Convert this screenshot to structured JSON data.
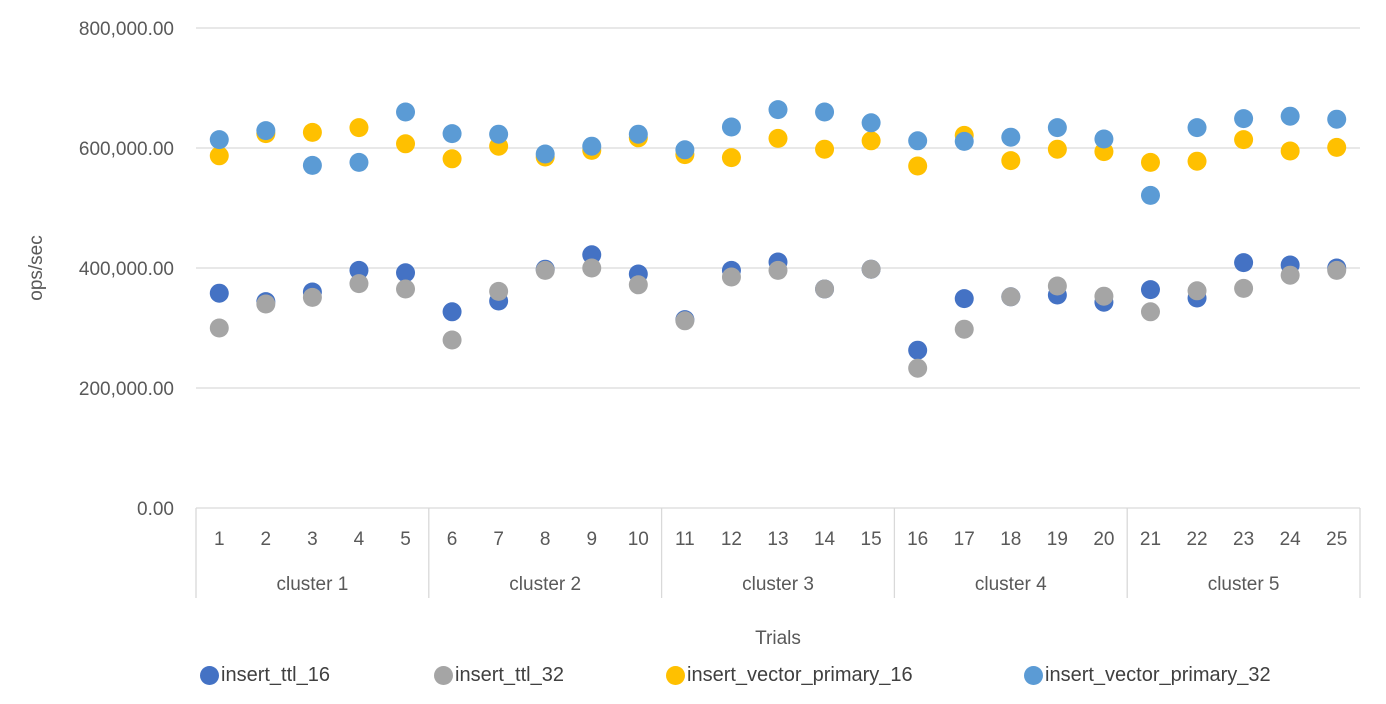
{
  "chart_data": {
    "type": "scatter",
    "xlabel": "Trials",
    "ylabel": "ops/sec",
    "ylim": [
      0,
      800000
    ],
    "yticks": [
      "0.00",
      "200,000.00",
      "400,000.00",
      "600,000.00",
      "800,000.00"
    ],
    "categories": [
      "1",
      "2",
      "3",
      "4",
      "5",
      "6",
      "7",
      "8",
      "9",
      "10",
      "11",
      "12",
      "13",
      "14",
      "15",
      "16",
      "17",
      "18",
      "19",
      "20",
      "21",
      "22",
      "23",
      "24",
      "25"
    ],
    "groups": [
      {
        "label": "cluster 1",
        "count": 5
      },
      {
        "label": "cluster 2",
        "count": 5
      },
      {
        "label": "cluster 3",
        "count": 5
      },
      {
        "label": "cluster 4",
        "count": 5
      },
      {
        "label": "cluster 5",
        "count": 5
      }
    ],
    "gridlines": true,
    "legend_position": "bottom",
    "series": [
      {
        "name": "insert_ttl_16",
        "color": "#4472C4",
        "values": [
          358000,
          344000,
          360000,
          396000,
          392000,
          327000,
          345000,
          398000,
          422000,
          390000,
          314000,
          396000,
          410000,
          365000,
          398000,
          263000,
          349000,
          352000,
          355000,
          343000,
          364000,
          350000,
          409000,
          405000,
          400000
        ]
      },
      {
        "name": "insert_ttl_32",
        "color": "#A5A5A5",
        "values": [
          300000,
          340000,
          351000,
          374000,
          365000,
          280000,
          361000,
          396000,
          400000,
          372000,
          312000,
          385000,
          396000,
          365000,
          398000,
          233000,
          298000,
          352000,
          370000,
          353000,
          327000,
          362000,
          366000,
          388000,
          396000
        ]
      },
      {
        "name": "insert_vector_primary_16",
        "color": "#FFC000",
        "values": [
          587000,
          624000,
          626000,
          634000,
          607000,
          582000,
          603000,
          585000,
          596000,
          617000,
          589000,
          584000,
          616000,
          598000,
          612000,
          570000,
          621000,
          579000,
          598000,
          594000,
          576000,
          578000,
          614000,
          595000,
          601000
        ]
      },
      {
        "name": "insert_vector_primary_32",
        "color": "#5B9BD5",
        "values": [
          614000,
          629000,
          571000,
          576000,
          660000,
          624000,
          623000,
          590000,
          603000,
          623000,
          597000,
          635000,
          664000,
          660000,
          642000,
          612000,
          611000,
          618000,
          634000,
          615000,
          521000,
          634000,
          649000,
          653000,
          648000
        ]
      }
    ]
  }
}
